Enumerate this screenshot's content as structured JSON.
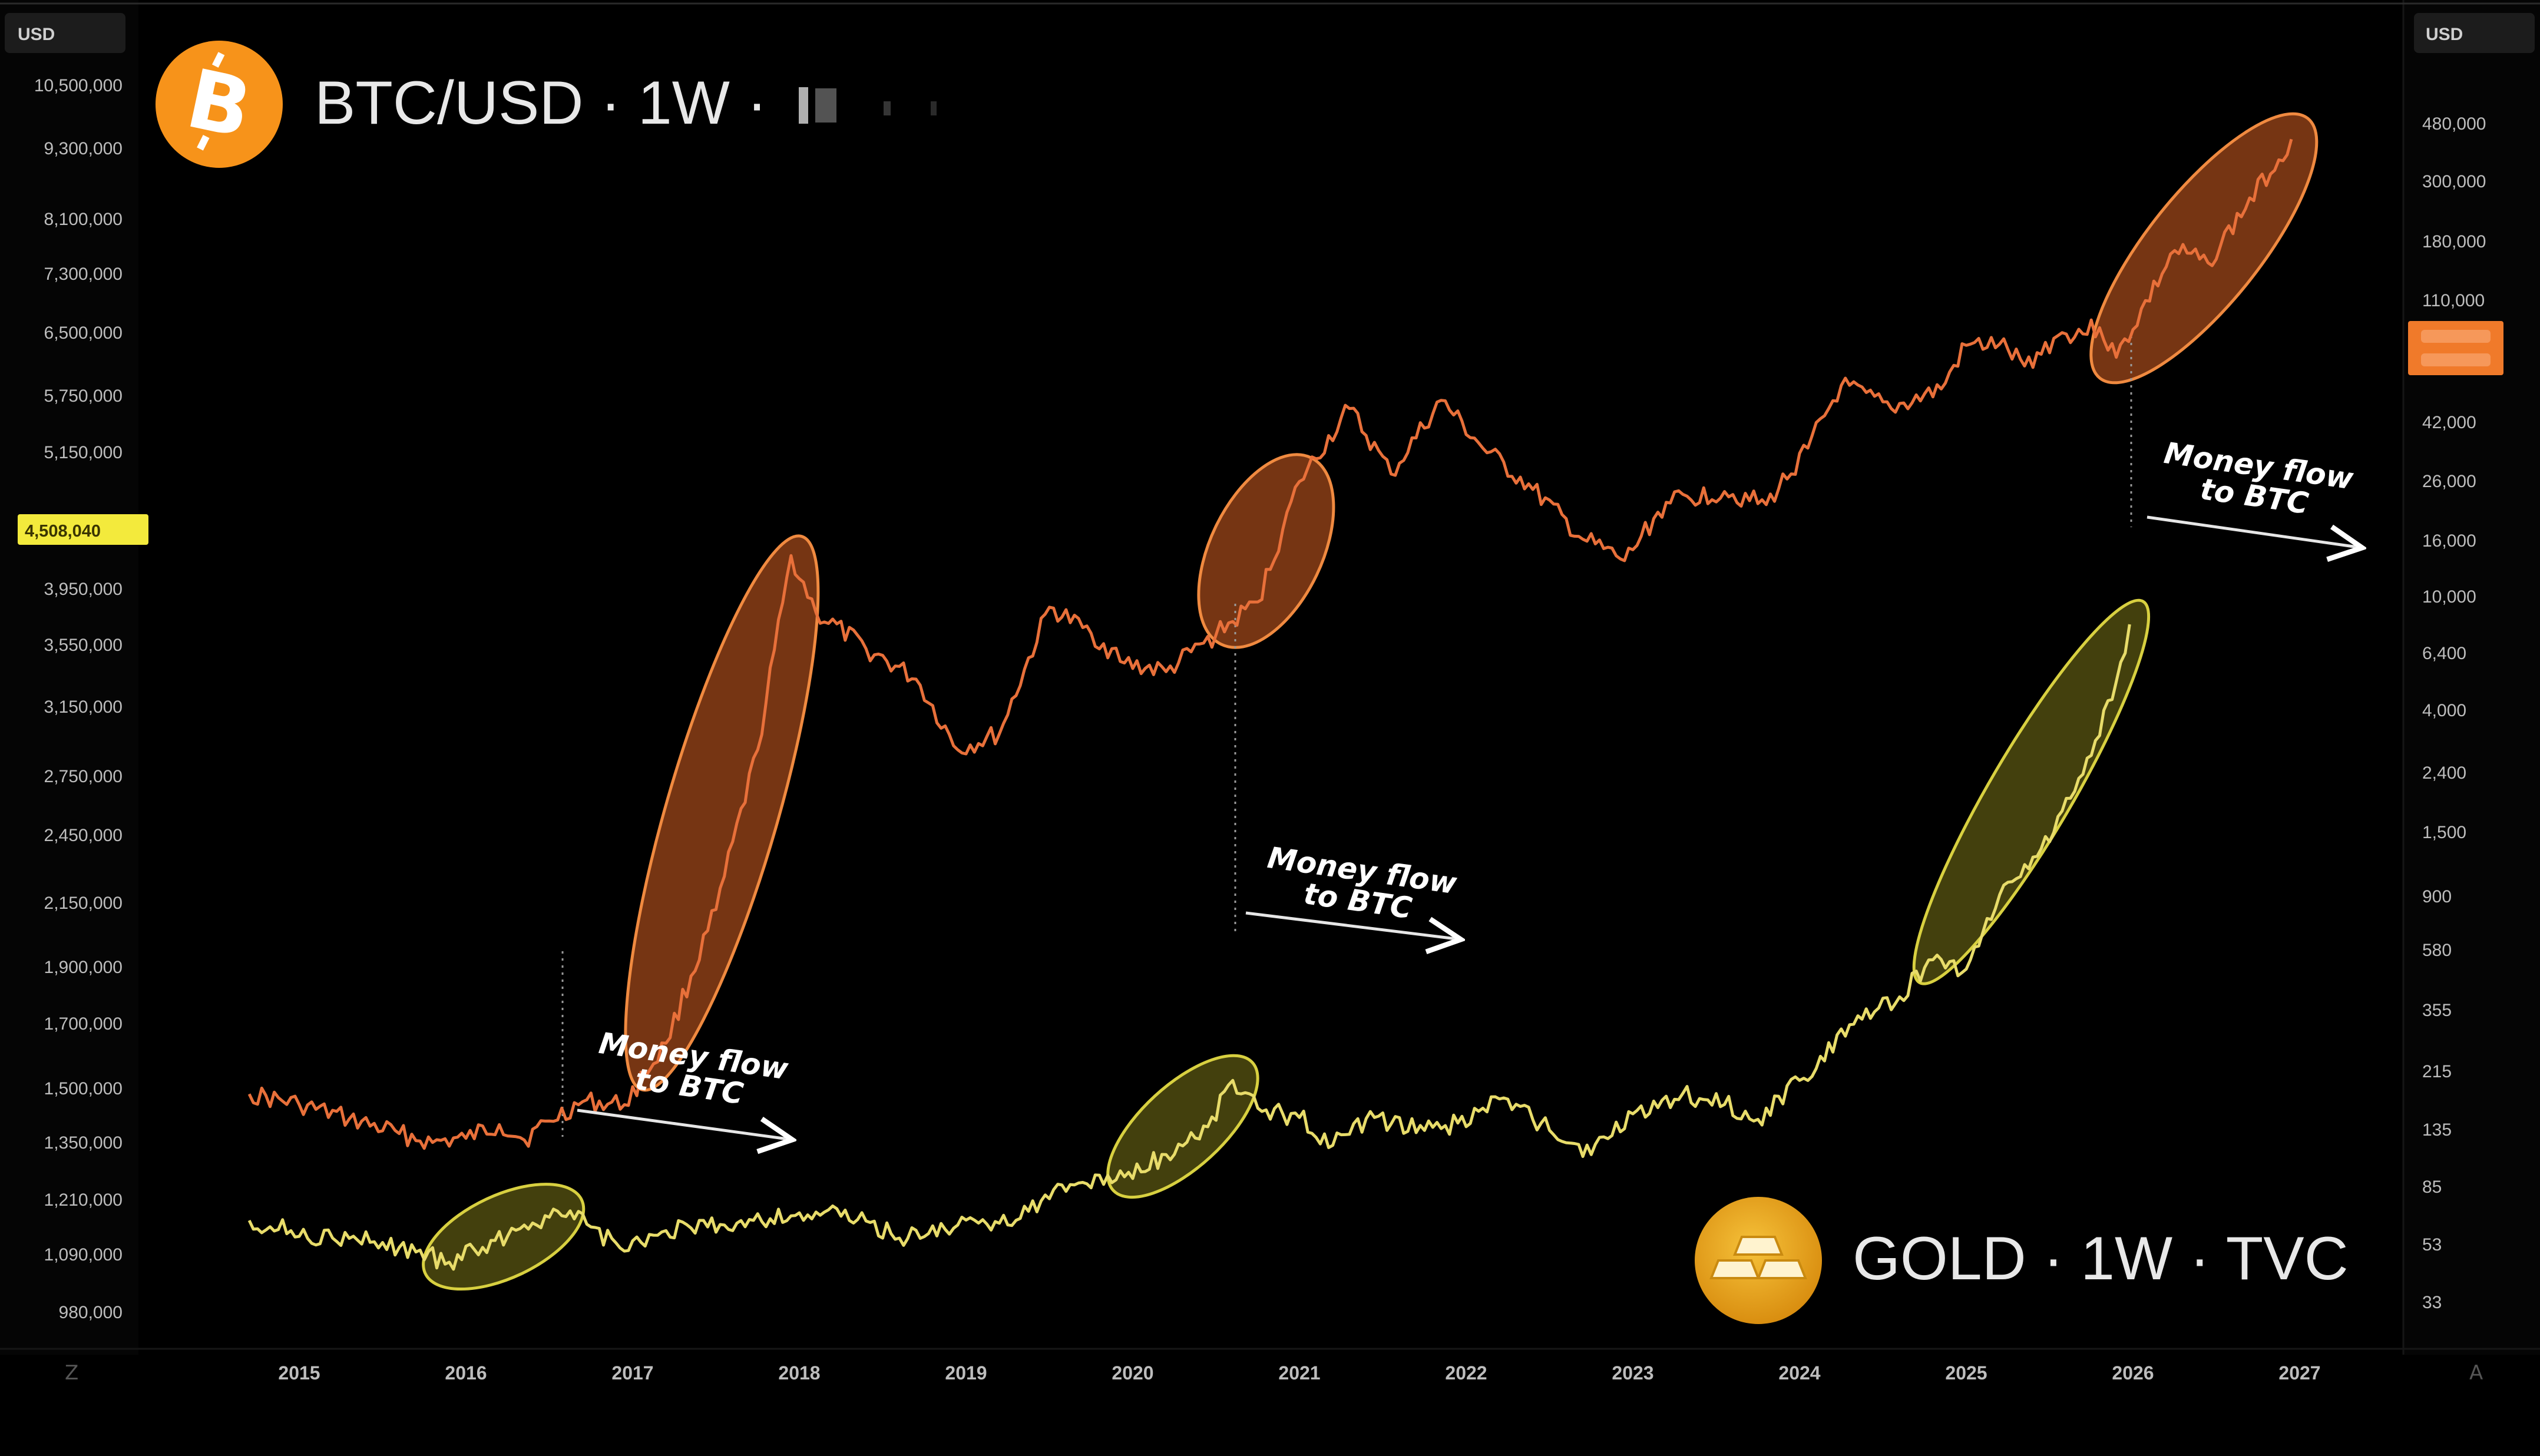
{
  "header": {
    "btc_symbol": "BTC/USD · 1W ·",
    "btc_icon": "bitcoin-logo-icon",
    "gold_symbol": "GOLD · 1W · TVC",
    "gold_icon": "gold-bars-icon"
  },
  "axes": {
    "left_currency": "USD",
    "right_currency": "USD",
    "left_ticks": [
      "10,500,000",
      "9,300,000",
      "8,100,000",
      "7,300,000",
      "6,500,000",
      "5,750,000",
      "5,150,000",
      "3,950,000",
      "3,550,000",
      "3,150,000",
      "2,750,000",
      "2,450,000",
      "2,150,000",
      "1,900,000",
      "1,700,000",
      "1,500,000",
      "1,350,000",
      "1,210,000",
      "1,090,000",
      "980,000"
    ],
    "left_price_tag": "4,508,040",
    "right_ticks": [
      "480,000",
      "300,000",
      "180,000",
      "110,000",
      "42,000",
      "26,000",
      "16,000",
      "10,000",
      "6,400",
      "4,000",
      "2,400",
      "1,500",
      "900",
      "580",
      "355",
      "215",
      "135",
      "85",
      "53",
      "33"
    ],
    "x_ticks": [
      "2015",
      "2016",
      "2017",
      "2018",
      "2019",
      "2020",
      "2021",
      "2022",
      "2023",
      "2024",
      "2025",
      "2026",
      "2027"
    ],
    "corner_left_glyph": "Z",
    "corner_right_glyph": "A"
  },
  "annotations": [
    {
      "text_line1": "Money flow",
      "text_line2": "to BTC"
    },
    {
      "text_line1": "Money flow",
      "text_line2": "to BTC"
    },
    {
      "text_line1": "Money flow",
      "text_line2": "to BTC"
    }
  ],
  "colors": {
    "background": "#000000",
    "btc_line": "#e8703a",
    "gold_line": "#e8dc6a",
    "btc_ellipse_fill": "#c5581f",
    "gold_ellipse_fill": "#a8a020",
    "price_tag_bg": "#f3ea3c",
    "right_tag_bg": "#f07a2a",
    "axis_text": "#bdbdbd",
    "axis_panel": "#0e0e0e"
  },
  "chart_data": {
    "type": "line",
    "x_axis_labels": [
      "2015",
      "2016",
      "2017",
      "2018",
      "2019",
      "2020",
      "2021",
      "2022",
      "2023",
      "2024",
      "2025",
      "2026",
      "2027"
    ],
    "series": [
      {
        "name": "BTC/USD",
        "color": "#e8703a",
        "points": [
          [
            2014.7,
            218
          ],
          [
            2015.0,
            200
          ],
          [
            2015.3,
            178
          ],
          [
            2015.6,
            158
          ],
          [
            2015.8,
            147
          ],
          [
            2016.0,
            152
          ],
          [
            2016.2,
            170
          ],
          [
            2016.35,
            150
          ],
          [
            2016.5,
            175
          ],
          [
            2016.7,
            205
          ],
          [
            2016.95,
            200
          ],
          [
            2017.2,
            330
          ],
          [
            2017.5,
            980
          ],
          [
            2017.75,
            3600
          ],
          [
            2017.95,
            17500
          ],
          [
            2018.1,
            11000
          ],
          [
            2018.4,
            8200
          ],
          [
            2018.7,
            6400
          ],
          [
            2018.95,
            3600
          ],
          [
            2019.2,
            4100
          ],
          [
            2019.5,
            11500
          ],
          [
            2019.75,
            9300
          ],
          [
            2019.95,
            7300
          ],
          [
            2020.2,
            6800
          ],
          [
            2020.5,
            9200
          ],
          [
            2020.75,
            12000
          ],
          [
            2021.0,
            32000
          ],
          [
            2021.3,
            58000
          ],
          [
            2021.55,
            34000
          ],
          [
            2021.85,
            62000
          ],
          [
            2022.1,
            42000
          ],
          [
            2022.4,
            30000
          ],
          [
            2022.7,
            20000
          ],
          [
            2022.95,
            16800
          ],
          [
            2023.2,
            27000
          ],
          [
            2023.55,
            29500
          ],
          [
            2023.8,
            26500
          ],
          [
            2024.05,
            42000
          ],
          [
            2024.25,
            70000
          ],
          [
            2024.55,
            58000
          ],
          [
            2024.85,
            68000
          ],
          [
            2025.0,
            97000
          ],
          [
            2025.2,
            98000
          ],
          [
            2025.35,
            82000
          ],
          [
            2025.55,
            105000
          ],
          [
            2025.8,
            112000
          ],
          [
            2025.9,
            88000
          ],
          [
            2026.25,
            210000
          ],
          [
            2026.45,
            190000
          ],
          [
            2026.95,
            520000
          ]
        ]
      },
      {
        "name": "GOLD",
        "color": "#e8dc6a",
        "points": [
          [
            2014.7,
            1295
          ],
          [
            2014.95,
            1240
          ],
          [
            2015.2,
            1200
          ],
          [
            2015.45,
            1180
          ],
          [
            2015.7,
            1125
          ],
          [
            2015.9,
            1070
          ],
          [
            2016.1,
            1150
          ],
          [
            2016.35,
            1270
          ],
          [
            2016.55,
            1345
          ],
          [
            2016.75,
            1260
          ],
          [
            2016.95,
            1130
          ],
          [
            2017.2,
            1240
          ],
          [
            2017.45,
            1260
          ],
          [
            2017.7,
            1300
          ],
          [
            2017.95,
            1320
          ],
          [
            2018.15,
            1340
          ],
          [
            2018.35,
            1300
          ],
          [
            2018.6,
            1200
          ],
          [
            2018.95,
            1270
          ],
          [
            2019.2,
            1280
          ],
          [
            2019.45,
            1400
          ],
          [
            2019.7,
            1500
          ],
          [
            2019.95,
            1530
          ],
          [
            2020.2,
            1650
          ],
          [
            2020.45,
            1800
          ],
          [
            2020.6,
            2050
          ],
          [
            2020.75,
            1900
          ],
          [
            2021.0,
            1850
          ],
          [
            2021.2,
            1700
          ],
          [
            2021.45,
            1850
          ],
          [
            2021.75,
            1780
          ],
          [
            2021.95,
            1820
          ],
          [
            2022.2,
            1950
          ],
          [
            2022.45,
            1820
          ],
          [
            2022.75,
            1650
          ],
          [
            2023.0,
            1870
          ],
          [
            2023.3,
            1980
          ],
          [
            2023.55,
            1920
          ],
          [
            2023.75,
            1840
          ],
          [
            2024.0,
            2050
          ],
          [
            2024.3,
            2350
          ],
          [
            2024.6,
            2500
          ],
          [
            2024.8,
            2700
          ],
          [
            2025.0,
            2650
          ],
          [
            2025.2,
            3050
          ],
          [
            2025.45,
            3300
          ],
          [
            2025.7,
            3700
          ],
          [
            2025.9,
            4200
          ],
          [
            2025.98,
            4508
          ]
        ]
      }
    ],
    "highlight_ranges": [
      {
        "series": "BTC/USD",
        "from": 2017.1,
        "to": 2017.97
      },
      {
        "series": "BTC/USD",
        "from": 2020.6,
        "to": 2021.0
      },
      {
        "series": "BTC/USD",
        "from": 2025.9,
        "to": 2026.95
      },
      {
        "series": "GOLD",
        "from": 2015.9,
        "to": 2016.55
      },
      {
        "series": "GOLD",
        "from": 2020.0,
        "to": 2020.6
      },
      {
        "series": "GOLD",
        "from": 2024.8,
        "to": 2025.98
      }
    ],
    "grid": false
  }
}
